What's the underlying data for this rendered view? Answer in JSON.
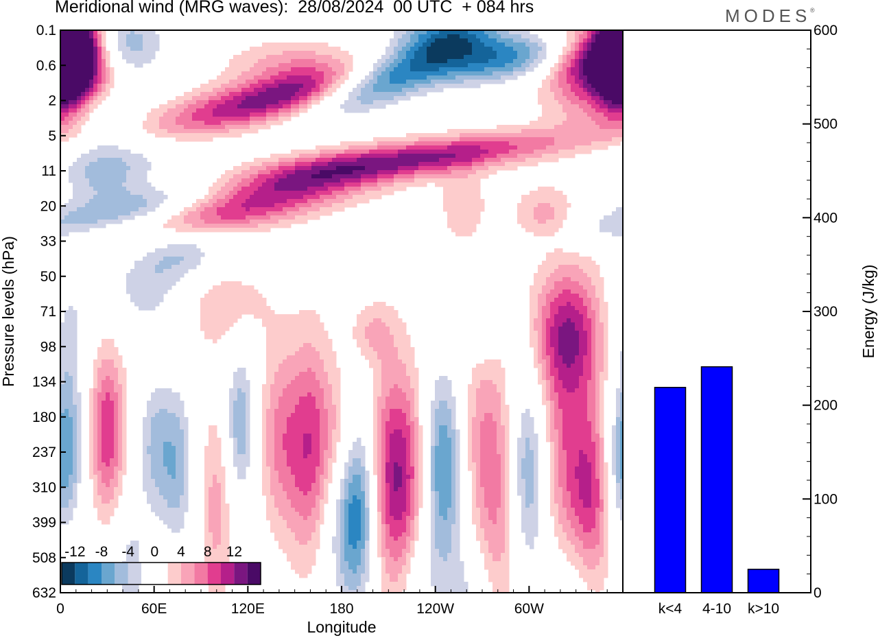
{
  "header": {
    "title": "Meridional wind (MRG waves):  28/08/2024  00 UTC  + 084 hrs",
    "brand": "MODES",
    "brand_mark": "®"
  },
  "chart_data": [
    {
      "type": "heatmap",
      "title": "Meridional wind (MRG waves):  28/08/2024  00 UTC  + 084 hrs",
      "xlabel": "Longitude",
      "ylabel": "Pressure levels (hPa)",
      "x_ticks": [
        "0",
        "60E",
        "120E",
        "180",
        "120W",
        "60W"
      ],
      "x_tick_degrees": [
        0,
        60,
        120,
        180,
        240,
        300
      ],
      "xlim": [
        0,
        360
      ],
      "y_ticks": [
        "0.1",
        "0.6",
        "2",
        "5",
        "11",
        "20",
        "33",
        "50",
        "71",
        "98",
        "134",
        "180",
        "237",
        "310",
        "399",
        "508",
        "632"
      ],
      "colorbar": {
        "labels": [
          "-12",
          "-8",
          "-4",
          "0",
          "4",
          "8",
          "12"
        ],
        "levels": [
          -14,
          -12,
          -10,
          -8,
          -6,
          -4,
          -2,
          2,
          4,
          6,
          8,
          10,
          12,
          14
        ],
        "colors": [
          "#0b3a5e",
          "#14649a",
          "#2b86c2",
          "#6aa6cf",
          "#a2bcdc",
          "#ced2e6",
          "#ffffff",
          "#ffffff",
          "#fdcccc",
          "#f9a4b8",
          "#f27aa3",
          "#e13d8f",
          "#b51f8a",
          "#7a1680",
          "#4a0a66"
        ],
        "placement": "bottom-left"
      }
    },
    {
      "type": "bar",
      "categories": [
        "k<4",
        "4-10",
        "k>10"
      ],
      "values": [
        219,
        241,
        25
      ],
      "ylabel": "Energy (J/kg)",
      "ylim": [
        0,
        600
      ],
      "y_ticks": [
        "0",
        "100",
        "200",
        "300",
        "400",
        "500",
        "600"
      ],
      "bar_color": "#0000ff"
    }
  ]
}
